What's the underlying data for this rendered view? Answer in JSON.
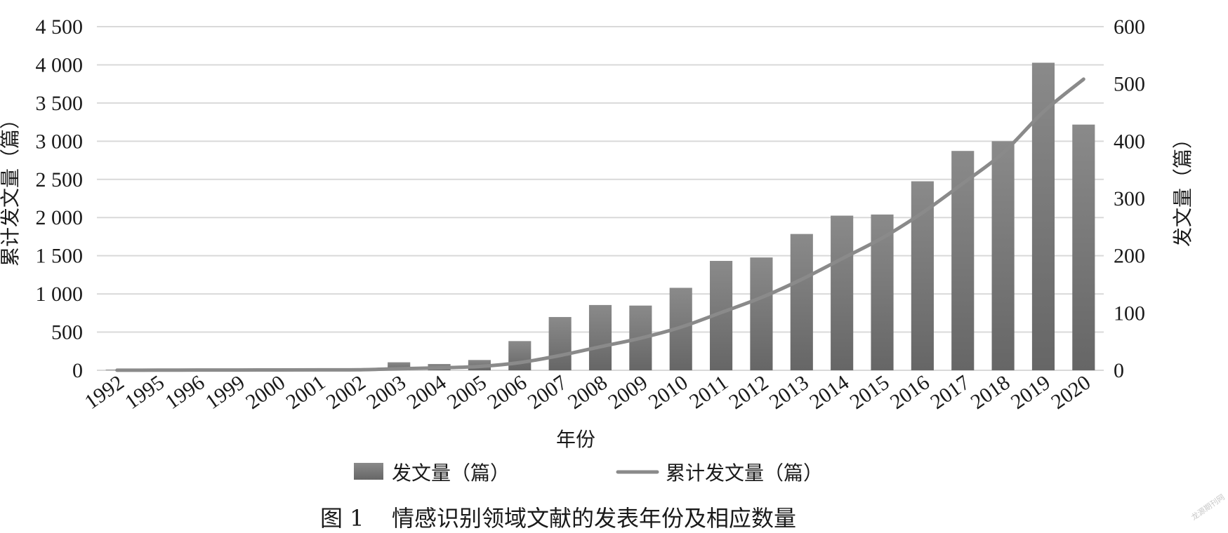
{
  "chart_data": {
    "type": "bar+line",
    "categories": [
      "1992",
      "1995",
      "1996",
      "1999",
      "2000",
      "2001",
      "2002",
      "2003",
      "2004",
      "2005",
      "2006",
      "2007",
      "2008",
      "2009",
      "2010",
      "2011",
      "2012",
      "2013",
      "2014",
      "2015",
      "2016",
      "2017",
      "2018",
      "2019",
      "2020"
    ],
    "series": [
      {
        "name": "发文量（篇）",
        "type": "bar",
        "axis": "right",
        "values": [
          1,
          1,
          1,
          1,
          1,
          1,
          1,
          14,
          11,
          18,
          51,
          93,
          114,
          113,
          144,
          191,
          197,
          238,
          270,
          272,
          330,
          383,
          400,
          537,
          429
        ]
      },
      {
        "name": "累计发文量（篇）",
        "type": "line",
        "axis": "left",
        "values": [
          1,
          2,
          3,
          4,
          5,
          6,
          7,
          21,
          32,
          50,
          101,
          194,
          308,
          421,
          565,
          756,
          953,
          1191,
          1461,
          1733,
          2063,
          2446,
          2846,
          3383,
          3812
        ]
      }
    ],
    "ylabel": "累计发文量（篇）",
    "y2label": "发文量（篇）",
    "xlabel": "年份",
    "ylim": [
      0,
      4500
    ],
    "y2lim": [
      0,
      600
    ],
    "yticks": [
      "0",
      "500",
      "1 000",
      "1 500",
      "2 000",
      "2 500",
      "3 000",
      "3 500",
      "4 000",
      "4 500"
    ],
    "y2ticks": [
      "0",
      "100",
      "200",
      "300",
      "400",
      "500",
      "600"
    ],
    "grid": true,
    "legend_position": "bottom-center",
    "colors": {
      "bar": "#7b7b7b",
      "line": "#8a8a8a",
      "grid": "#d9d9d9"
    }
  },
  "caption": {
    "label": "图 1",
    "text": "情感识别领域文献的发表年份及相应数量"
  }
}
